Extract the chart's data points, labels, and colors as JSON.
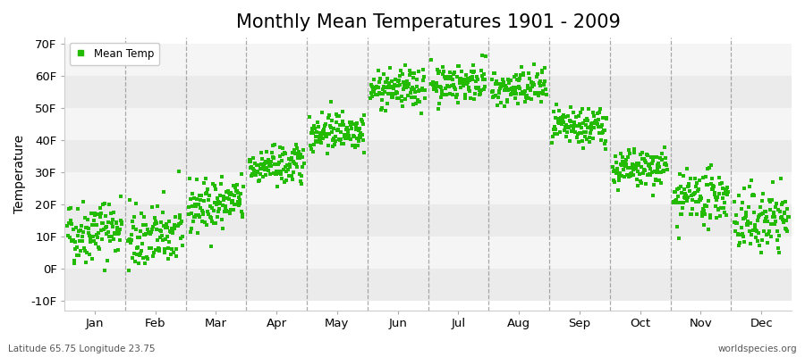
{
  "title": "Monthly Mean Temperatures 1901 - 2009",
  "ylabel": "Temperature",
  "xlabel_labels": [
    "Jan",
    "Feb",
    "Mar",
    "Apr",
    "May",
    "Jun",
    "Jul",
    "Aug",
    "Sep",
    "Oct",
    "Nov",
    "Dec"
  ],
  "ytick_labels": [
    "-10F",
    "0F",
    "10F",
    "20F",
    "30F",
    "40F",
    "50F",
    "60F",
    "70F"
  ],
  "ytick_values": [
    -10,
    0,
    10,
    20,
    30,
    40,
    50,
    60,
    70
  ],
  "ylim": [
    -13,
    72
  ],
  "dot_color": "#22bb00",
  "bg_color": "#ffffff",
  "legend_label": "Mean Temp",
  "footer_left": "Latitude 65.75 Longitude 23.75",
  "footer_right": "worldspecies.org",
  "title_fontsize": 15,
  "label_fontsize": 10,
  "tick_fontsize": 9.5,
  "monthly_means": [
    12,
    10,
    20,
    32,
    43,
    56,
    58,
    56,
    44,
    31,
    22,
    15
  ],
  "monthly_stds": [
    5,
    5,
    4,
    3,
    3,
    3,
    3,
    3,
    3,
    3,
    4,
    5
  ],
  "monthly_trends": [
    0.02,
    0.02,
    0.02,
    0.01,
    0.01,
    0.01,
    0.01,
    0.01,
    0.01,
    0.01,
    0.02,
    0.02
  ],
  "n_years": 109,
  "stripe_color_dark": "#ebebeb",
  "stripe_color_light": "#f5f5f5",
  "vline_color": "#888888"
}
